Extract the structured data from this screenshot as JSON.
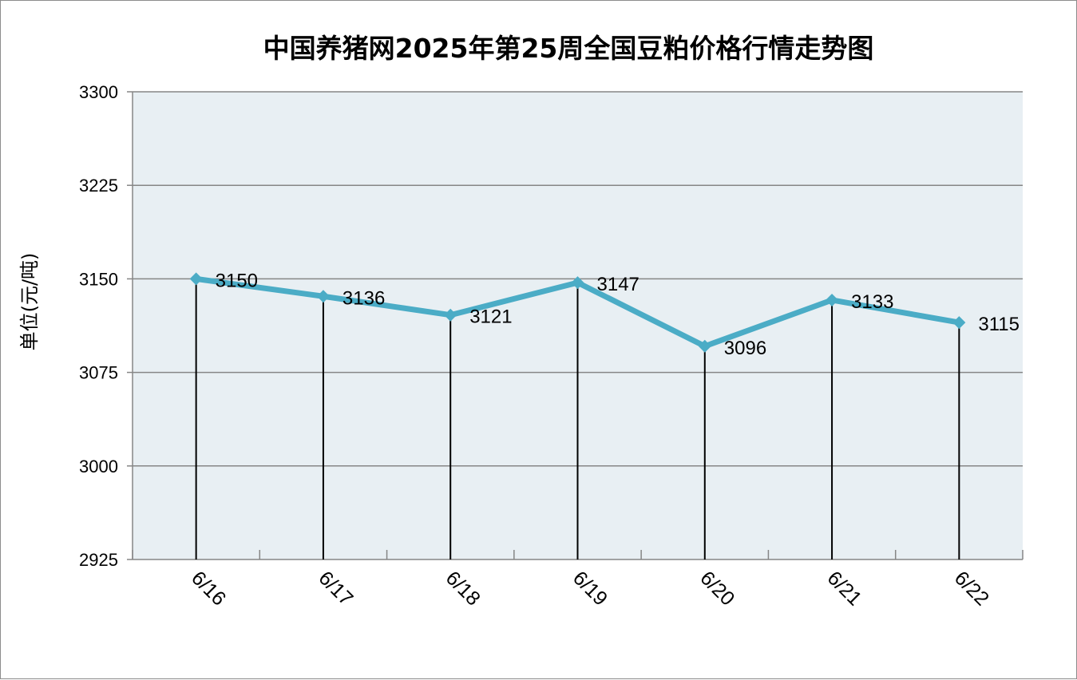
{
  "colors": {
    "plot_background": "#e8eff3",
    "gridline": "#868686",
    "series_line": "#4bacc6",
    "drop_line": "#000000"
  },
  "chart_data": {
    "type": "line",
    "title": "中国养猪网2025年第25周全国豆粕价格行情走势图",
    "xlabel": "",
    "ylabel": "单位(元/吨)",
    "categories": [
      "6/16",
      "6/17",
      "6/18",
      "6/19",
      "6/20",
      "6/21",
      "6/22"
    ],
    "series": [
      {
        "values": [
          3150,
          3136,
          3121,
          3147,
          3096,
          3133,
          3115
        ],
        "marker": "diamond"
      }
    ],
    "ylim": [
      2925,
      3300
    ],
    "yticks": [
      2925,
      3000,
      3075,
      3150,
      3225,
      3300
    ],
    "grid": true,
    "drop_lines": true,
    "data_labels": true,
    "legend": "none"
  }
}
